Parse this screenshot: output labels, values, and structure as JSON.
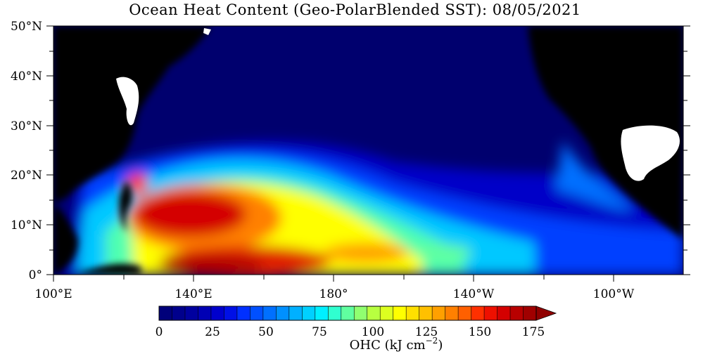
{
  "title": "Ocean Heat Content (Geo-PolarBlended SST): 08/05/2021",
  "map": {
    "lat_labels": [
      "50°N",
      "40°N",
      "30°N",
      "20°N",
      "10°N",
      "0°"
    ],
    "lon_labels": [
      "100°E",
      "140°E",
      "180°",
      "140°W",
      "100°W"
    ],
    "land_color": "#000000",
    "missing_color": "#ffffff"
  },
  "colorbar": {
    "label_main": "OHC (kJ cm",
    "label_sup": "−2",
    "label_close": ")",
    "ticks": [
      "0",
      "25",
      "50",
      "75",
      "100",
      "125",
      "150",
      "175"
    ],
    "colors": [
      "#00007a",
      "#00008c",
      "#00009f",
      "#0000b4",
      "#0000cc",
      "#0010e6",
      "#0030ff",
      "#0050ff",
      "#0070ff",
      "#0090ff",
      "#00b0ff",
      "#00d0ff",
      "#00f0ff",
      "#30ffd0",
      "#60ffa0",
      "#90ff70",
      "#b8ff40",
      "#dcff20",
      "#ffff00",
      "#ffe000",
      "#ffc000",
      "#ffa000",
      "#ff8000",
      "#ff6000",
      "#ff3000",
      "#ee1000",
      "#d40000",
      "#b80000",
      "#a00000"
    ],
    "arrow_color": "#900000"
  }
}
